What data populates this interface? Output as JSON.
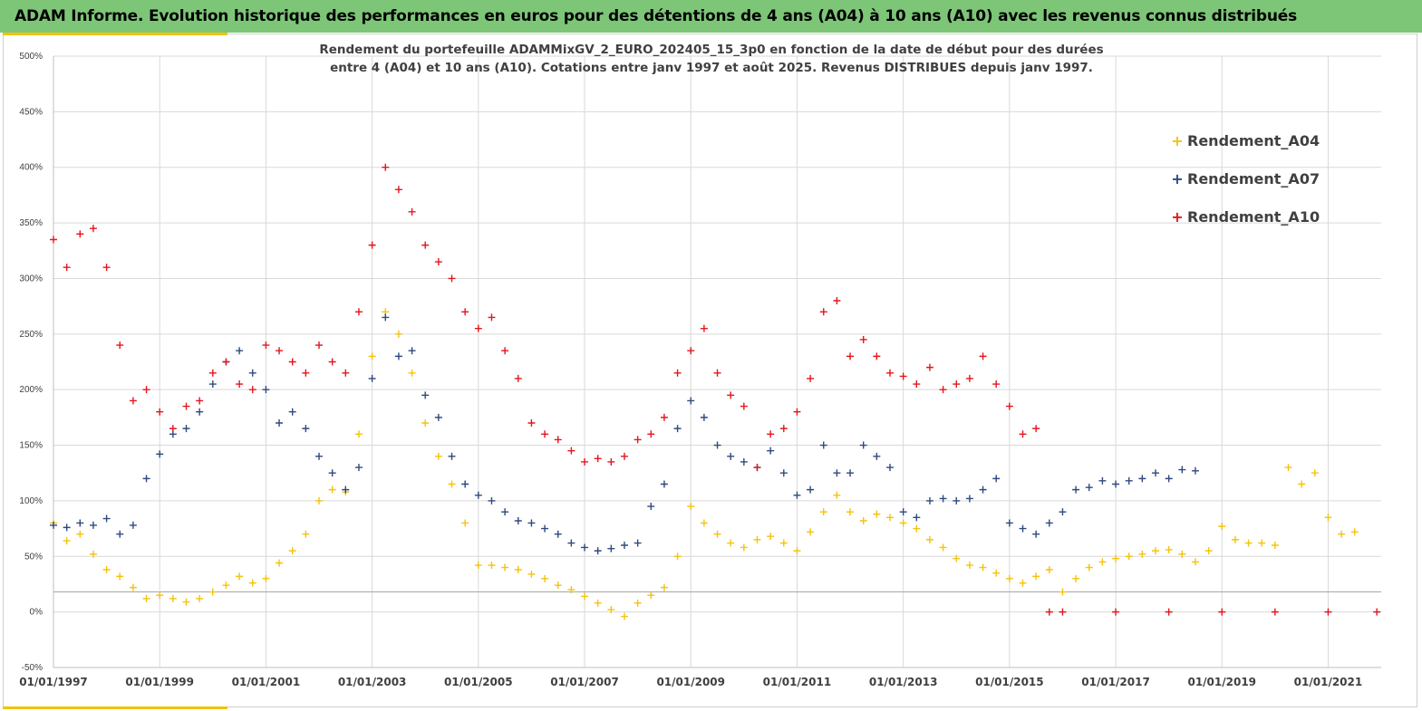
{
  "banner": {
    "title": "ADAM Informe. Evolution historique des performances en euros pour des détentions de 4 ans (A04) à 10 ans (A10) avec les revenus connus distribués"
  },
  "colors": {
    "banner_bg": "#7dc678",
    "accent": "#f4c20d",
    "a04": "#f4c20d",
    "a07": "#2e4a7d",
    "a10": "#e3161d",
    "grid": "#d9d9d9",
    "zero_ref_line": "#a6a6a6"
  },
  "chart_data": {
    "type": "scatter",
    "title_line1": "Rendement du portefeuille ADAMMixGV_2_EURO_202405_15_3p0 en fonction de la date de début pour des durées",
    "title_line2": "entre 4 (A04) et 10 ans (A10). Cotations entre janv 1997 et août 2025. Revenus DISTRIBUES depuis janv 1997.",
    "marker": "+",
    "xlabel": "",
    "ylabel": "",
    "x_range": [
      "1997-01-01",
      "2021-12-31"
    ],
    "ylim": [
      -50,
      500
    ],
    "y_ticks": [
      "-50%",
      "0%",
      "50%",
      "100%",
      "150%",
      "200%",
      "250%",
      "300%",
      "350%",
      "400%",
      "450%",
      "500%"
    ],
    "x_ticks": [
      "01/01/1997",
      "01/01/1999",
      "01/01/2001",
      "01/01/2003",
      "01/01/2005",
      "01/01/2007",
      "01/01/2009",
      "01/01/2011",
      "01/01/2013",
      "01/01/2015",
      "01/01/2017",
      "01/01/2019",
      "01/01/2021"
    ],
    "grid": true,
    "legend_position": "top-right",
    "reference_line_y": 18,
    "series": [
      {
        "name": "Rendement_A04",
        "points": [
          [
            "1997-01",
            80
          ],
          [
            "1997-04",
            64
          ],
          [
            "1997-07",
            70
          ],
          [
            "1997-10",
            52
          ],
          [
            "1998-01",
            38
          ],
          [
            "1998-04",
            32
          ],
          [
            "1998-07",
            22
          ],
          [
            "1998-10",
            12
          ],
          [
            "1999-01",
            15
          ],
          [
            "1999-04",
            12
          ],
          [
            "1999-07",
            9
          ],
          [
            "1999-10",
            12
          ],
          [
            "2000-01",
            18
          ],
          [
            "2000-04",
            24
          ],
          [
            "2000-07",
            32
          ],
          [
            "2000-10",
            26
          ],
          [
            "2001-01",
            30
          ],
          [
            "2001-04",
            44
          ],
          [
            "2001-07",
            55
          ],
          [
            "2001-10",
            70
          ],
          [
            "2002-01",
            100
          ],
          [
            "2002-04",
            110
          ],
          [
            "2002-07",
            108
          ],
          [
            "2002-10",
            160
          ],
          [
            "2003-01",
            230
          ],
          [
            "2003-04",
            270
          ],
          [
            "2003-07",
            250
          ],
          [
            "2003-10",
            215
          ],
          [
            "2004-01",
            170
          ],
          [
            "2004-04",
            140
          ],
          [
            "2004-07",
            115
          ],
          [
            "2004-10",
            80
          ],
          [
            "2005-01",
            42
          ],
          [
            "2005-04",
            42
          ],
          [
            "2005-07",
            40
          ],
          [
            "2005-10",
            38
          ],
          [
            "2006-01",
            34
          ],
          [
            "2006-04",
            30
          ],
          [
            "2006-07",
            24
          ],
          [
            "2006-10",
            20
          ],
          [
            "2007-01",
            14
          ],
          [
            "2007-04",
            8
          ],
          [
            "2007-07",
            2
          ],
          [
            "2007-10",
            -4
          ],
          [
            "2008-01",
            8
          ],
          [
            "2008-04",
            15
          ],
          [
            "2008-07",
            22
          ],
          [
            "2008-10",
            50
          ],
          [
            "2009-01",
            95
          ],
          [
            "2009-04",
            80
          ],
          [
            "2009-07",
            70
          ],
          [
            "2009-10",
            62
          ],
          [
            "2010-01",
            58
          ],
          [
            "2010-04",
            65
          ],
          [
            "2010-07",
            68
          ],
          [
            "2010-10",
            62
          ],
          [
            "2011-01",
            55
          ],
          [
            "2011-04",
            72
          ],
          [
            "2011-07",
            90
          ],
          [
            "2011-10",
            105
          ],
          [
            "2012-01",
            90
          ],
          [
            "2012-04",
            82
          ],
          [
            "2012-07",
            88
          ],
          [
            "2012-10",
            85
          ],
          [
            "2013-01",
            80
          ],
          [
            "2013-04",
            75
          ],
          [
            "2013-07",
            65
          ],
          [
            "2013-10",
            58
          ],
          [
            "2014-01",
            48
          ],
          [
            "2014-04",
            42
          ],
          [
            "2014-07",
            40
          ],
          [
            "2014-10",
            35
          ],
          [
            "2015-01",
            30
          ],
          [
            "2015-04",
            26
          ],
          [
            "2015-07",
            32
          ],
          [
            "2015-10",
            38
          ],
          [
            "2016-01",
            18
          ],
          [
            "2016-04",
            30
          ],
          [
            "2016-07",
            40
          ],
          [
            "2016-10",
            45
          ],
          [
            "2017-01",
            48
          ],
          [
            "2017-04",
            50
          ],
          [
            "2017-07",
            52
          ],
          [
            "2017-10",
            55
          ],
          [
            "2018-01",
            56
          ],
          [
            "2018-04",
            52
          ],
          [
            "2018-07",
            45
          ],
          [
            "2018-10",
            55
          ],
          [
            "2019-01",
            77
          ],
          [
            "2019-04",
            65
          ],
          [
            "2019-07",
            62
          ],
          [
            "2019-10",
            62
          ],
          [
            "2020-01",
            60
          ],
          [
            "2020-04",
            130
          ],
          [
            "2020-07",
            115
          ],
          [
            "2020-10",
            125
          ],
          [
            "2021-01",
            85
          ],
          [
            "2021-04",
            70
          ],
          [
            "2021-07",
            72
          ]
        ]
      },
      {
        "name": "Rendement_A07",
        "points": [
          [
            "1997-01",
            78
          ],
          [
            "1997-04",
            76
          ],
          [
            "1997-07",
            80
          ],
          [
            "1997-10",
            78
          ],
          [
            "1998-01",
            84
          ],
          [
            "1998-04",
            70
          ],
          [
            "1998-07",
            78
          ],
          [
            "1998-10",
            120
          ],
          [
            "1999-01",
            142
          ],
          [
            "1999-04",
            160
          ],
          [
            "1999-07",
            165
          ],
          [
            "1999-10",
            180
          ],
          [
            "2000-01",
            205
          ],
          [
            "2000-04",
            225
          ],
          [
            "2000-07",
            235
          ],
          [
            "2000-10",
            215
          ],
          [
            "2001-01",
            200
          ],
          [
            "2001-04",
            170
          ],
          [
            "2001-07",
            180
          ],
          [
            "2001-10",
            165
          ],
          [
            "2002-01",
            140
          ],
          [
            "2002-04",
            125
          ],
          [
            "2002-07",
            110
          ],
          [
            "2002-10",
            130
          ],
          [
            "2003-01",
            210
          ],
          [
            "2003-04",
            265
          ],
          [
            "2003-07",
            230
          ],
          [
            "2003-10",
            235
          ],
          [
            "2004-01",
            195
          ],
          [
            "2004-04",
            175
          ],
          [
            "2004-07",
            140
          ],
          [
            "2004-10",
            115
          ],
          [
            "2005-01",
            105
          ],
          [
            "2005-04",
            100
          ],
          [
            "2005-07",
            90
          ],
          [
            "2005-10",
            82
          ],
          [
            "2006-01",
            80
          ],
          [
            "2006-04",
            75
          ],
          [
            "2006-07",
            70
          ],
          [
            "2006-10",
            62
          ],
          [
            "2007-01",
            58
          ],
          [
            "2007-04",
            55
          ],
          [
            "2007-07",
            57
          ],
          [
            "2007-10",
            60
          ],
          [
            "2008-01",
            62
          ],
          [
            "2008-04",
            95
          ],
          [
            "2008-07",
            115
          ],
          [
            "2008-10",
            165
          ],
          [
            "2009-01",
            190
          ],
          [
            "2009-04",
            175
          ],
          [
            "2009-07",
            150
          ],
          [
            "2009-10",
            140
          ],
          [
            "2010-01",
            135
          ],
          [
            "2010-04",
            130
          ],
          [
            "2010-07",
            145
          ],
          [
            "2010-10",
            125
          ],
          [
            "2011-01",
            105
          ],
          [
            "2011-04",
            110
          ],
          [
            "2011-07",
            150
          ],
          [
            "2011-10",
            125
          ],
          [
            "2012-01",
            125
          ],
          [
            "2012-04",
            150
          ],
          [
            "2012-07",
            140
          ],
          [
            "2012-10",
            130
          ],
          [
            "2013-01",
            90
          ],
          [
            "2013-04",
            85
          ],
          [
            "2013-07",
            100
          ],
          [
            "2013-10",
            102
          ],
          [
            "2014-01",
            100
          ],
          [
            "2014-04",
            102
          ],
          [
            "2014-07",
            110
          ],
          [
            "2014-10",
            120
          ],
          [
            "2015-01",
            80
          ],
          [
            "2015-04",
            75
          ],
          [
            "2015-07",
            70
          ],
          [
            "2015-10",
            80
          ],
          [
            "2016-01",
            90
          ],
          [
            "2016-04",
            110
          ],
          [
            "2016-07",
            112
          ],
          [
            "2016-10",
            118
          ],
          [
            "2017-01",
            115
          ],
          [
            "2017-04",
            118
          ],
          [
            "2017-07",
            120
          ],
          [
            "2017-10",
            125
          ],
          [
            "2018-01",
            120
          ],
          [
            "2018-04",
            128
          ],
          [
            "2018-07",
            127
          ]
        ]
      },
      {
        "name": "Rendement_A10",
        "points": [
          [
            "1997-01",
            335
          ],
          [
            "1997-04",
            310
          ],
          [
            "1997-07",
            340
          ],
          [
            "1997-10",
            345
          ],
          [
            "1998-01",
            310
          ],
          [
            "1998-04",
            240
          ],
          [
            "1998-07",
            190
          ],
          [
            "1998-10",
            200
          ],
          [
            "1999-01",
            180
          ],
          [
            "1999-04",
            165
          ],
          [
            "1999-07",
            185
          ],
          [
            "1999-10",
            190
          ],
          [
            "2000-01",
            215
          ],
          [
            "2000-04",
            225
          ],
          [
            "2000-07",
            205
          ],
          [
            "2000-10",
            200
          ],
          [
            "2001-01",
            240
          ],
          [
            "2001-04",
            235
          ],
          [
            "2001-07",
            225
          ],
          [
            "2001-10",
            215
          ],
          [
            "2002-01",
            240
          ],
          [
            "2002-04",
            225
          ],
          [
            "2002-07",
            215
          ],
          [
            "2002-10",
            270
          ],
          [
            "2003-01",
            330
          ],
          [
            "2003-04",
            400
          ],
          [
            "2003-07",
            380
          ],
          [
            "2003-10",
            360
          ],
          [
            "2004-01",
            330
          ],
          [
            "2004-04",
            315
          ],
          [
            "2004-07",
            300
          ],
          [
            "2004-10",
            270
          ],
          [
            "2005-01",
            255
          ],
          [
            "2005-04",
            265
          ],
          [
            "2005-07",
            235
          ],
          [
            "2005-10",
            210
          ],
          [
            "2006-01",
            170
          ],
          [
            "2006-04",
            160
          ],
          [
            "2006-07",
            155
          ],
          [
            "2006-10",
            145
          ],
          [
            "2007-01",
            135
          ],
          [
            "2007-04",
            138
          ],
          [
            "2007-07",
            135
          ],
          [
            "2007-10",
            140
          ],
          [
            "2008-01",
            155
          ],
          [
            "2008-04",
            160
          ],
          [
            "2008-07",
            175
          ],
          [
            "2008-10",
            215
          ],
          [
            "2009-01",
            235
          ],
          [
            "2009-04",
            255
          ],
          [
            "2009-07",
            215
          ],
          [
            "2009-10",
            195
          ],
          [
            "2010-01",
            185
          ],
          [
            "2010-04",
            130
          ],
          [
            "2010-07",
            160
          ],
          [
            "2010-10",
            165
          ],
          [
            "2011-01",
            180
          ],
          [
            "2011-04",
            210
          ],
          [
            "2011-07",
            270
          ],
          [
            "2011-10",
            280
          ],
          [
            "2012-01",
            230
          ],
          [
            "2012-04",
            245
          ],
          [
            "2012-07",
            230
          ],
          [
            "2012-10",
            215
          ],
          [
            "2013-01",
            212
          ],
          [
            "2013-04",
            205
          ],
          [
            "2013-07",
            220
          ],
          [
            "2013-10",
            200
          ],
          [
            "2014-01",
            205
          ],
          [
            "2014-04",
            210
          ],
          [
            "2014-07",
            230
          ],
          [
            "2014-10",
            205
          ],
          [
            "2015-01",
            185
          ],
          [
            "2015-04",
            160
          ],
          [
            "2015-07",
            165
          ],
          [
            "2015-10",
            0
          ],
          [
            "2016-01",
            0
          ],
          [
            "2017-01",
            0
          ],
          [
            "2018-01",
            0
          ],
          [
            "2019-01",
            0
          ],
          [
            "2020-01",
            0
          ],
          [
            "2021-01",
            0
          ],
          [
            "2021-12",
            0
          ]
        ]
      }
    ]
  }
}
